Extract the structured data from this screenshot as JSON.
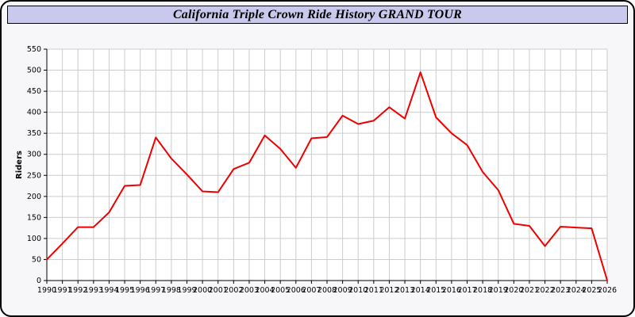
{
  "window": {
    "title": "California Triple Crown Ride History GRAND TOUR"
  },
  "colors": {
    "line": "#ee0000",
    "grid": "#cccccc",
    "plot_background": "#ffffff",
    "page_background": "#f7f7fa",
    "titlebar_background": "#c9c9ee",
    "axis": "#000000"
  },
  "chart_data": {
    "type": "line",
    "title": "California Triple Crown Ride History GRAND TOUR",
    "xlabel": "",
    "ylabel": "Riders",
    "ylim": [
      0,
      550
    ],
    "ytick_step": 50,
    "grid": true,
    "legend": "none",
    "line_color": "#ee0000",
    "grid_color": "#cccccc",
    "categories": [
      1990,
      1991,
      1992,
      1993,
      1994,
      1995,
      1996,
      1997,
      1998,
      1999,
      2000,
      2001,
      2002,
      2003,
      2004,
      2005,
      2006,
      2007,
      2008,
      2009,
      2010,
      2011,
      2012,
      2013,
      2014,
      2015,
      2016,
      2017,
      2018,
      2019,
      2020,
      2021,
      2022,
      2023,
      2024,
      2025,
      2026
    ],
    "values": [
      50,
      88,
      127,
      127,
      162,
      225,
      227,
      340,
      290,
      252,
      212,
      210,
      265,
      280,
      345,
      313,
      268,
      338,
      341,
      392,
      372,
      380,
      412,
      385,
      495,
      388,
      350,
      322,
      258,
      215,
      135,
      130,
      82,
      128,
      126,
      124,
      0
    ]
  }
}
